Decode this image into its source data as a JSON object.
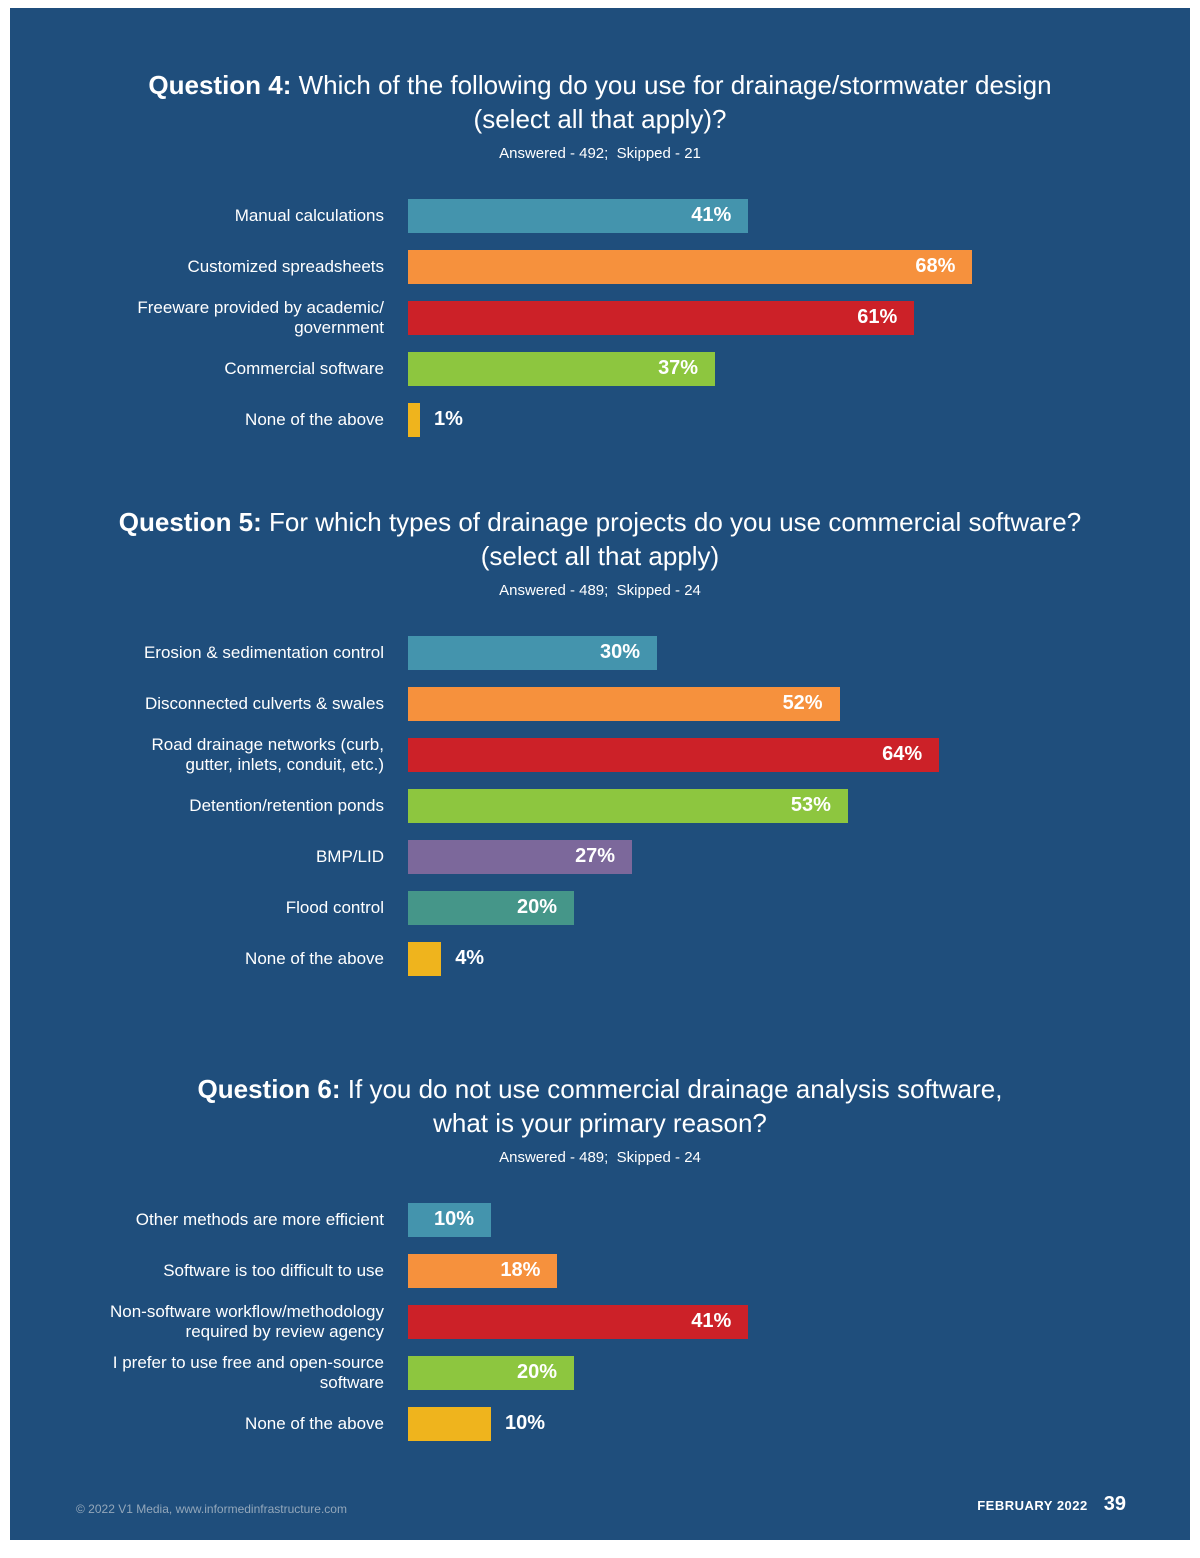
{
  "page": {
    "background_color": "#1f4e7c",
    "footer_left": "© 2022 V1 Media, www.informedinfrastructure.com",
    "footer_month": "FEBRUARY 2022",
    "footer_page": "39"
  },
  "chart_data": [
    {
      "type": "bar",
      "title": "Question 4: Which of the following do you use for drainage/stormwater design (select all that apply)?",
      "question_label": "Question 4:",
      "question_rest": "Which of the following do you use for drainage/stormwater design\n(select all that apply)?",
      "subtitle": "Answered - 492;  Skipped - 21",
      "categories": [
        "Manual calculations",
        "Customized spreadsheets",
        "Freeware provided by academic/\ngovernment",
        "Commercial software",
        "None of the above"
      ],
      "values": [
        41,
        68,
        61,
        37,
        1
      ],
      "colors": [
        "#4494ad",
        "#f6913d",
        "#cc2128",
        "#8dc63f",
        "#efb41d"
      ],
      "inside": [
        true,
        true,
        true,
        true,
        false
      ],
      "xlim": [
        0,
        100
      ],
      "value_suffix": "%"
    },
    {
      "type": "bar",
      "title": "Question 5: For which types of drainage projects do you use commercial software? (select all that apply)",
      "question_label": "Question 5:",
      "question_rest": "For which types of drainage projects do you use commercial software?\n(select all that apply)",
      "subtitle": "Answered - 489;  Skipped - 24",
      "categories": [
        "Erosion & sedimentation control",
        "Disconnected culverts & swales",
        "Road drainage networks (curb,\ngutter, inlets, conduit, etc.)",
        "Detention/retention ponds",
        "BMP/LID",
        "Flood control",
        "None of the above"
      ],
      "values": [
        30,
        52,
        64,
        53,
        27,
        20,
        4
      ],
      "colors": [
        "#4494ad",
        "#f6913d",
        "#cc2128",
        "#8dc63f",
        "#7c689b",
        "#459689",
        "#efb41d"
      ],
      "inside": [
        true,
        true,
        true,
        true,
        true,
        true,
        false
      ],
      "xlim": [
        0,
        100
      ],
      "value_suffix": "%"
    },
    {
      "type": "bar",
      "title": "Question 6: If you do not use commercial drainage analysis software, what is your primary reason?",
      "question_label": "Question 6:",
      "question_rest": "If you do not use commercial drainage analysis software,\nwhat is your primary reason?",
      "subtitle": "Answered - 489;  Skipped - 24",
      "categories": [
        "Other methods are more efficient",
        "Software is too difficult to use",
        "Non-software workflow/methodology\nrequired by review agency",
        "I prefer to use free and open-source\nsoftware",
        "None of the above"
      ],
      "values": [
        10,
        18,
        41,
        20,
        10
      ],
      "colors": [
        "#4494ad",
        "#f6913d",
        "#cc2128",
        "#8dc63f",
        "#efb41d"
      ],
      "inside": [
        true,
        true,
        true,
        true,
        false
      ],
      "xlim": [
        0,
        100
      ],
      "value_suffix": "%"
    }
  ]
}
